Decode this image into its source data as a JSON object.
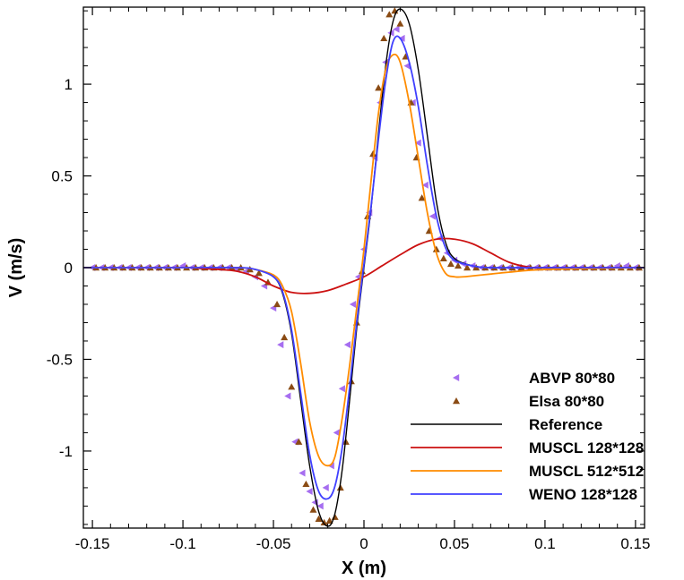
{
  "chart_data": {
    "type": "line",
    "xlabel": "X (m)",
    "ylabel": "V (m/s)",
    "xlim": [
      -0.155,
      0.155
    ],
    "ylim": [
      -1.42,
      1.42
    ],
    "x_ticks": [
      -0.15,
      -0.1,
      -0.05,
      0,
      0.05,
      0.1,
      0.15
    ],
    "x_tick_labels": [
      "-0.15",
      "-0.1",
      "-0.05",
      "0",
      "0.05",
      "0.1",
      "0.15"
    ],
    "y_ticks": [
      -1,
      -0.5,
      0,
      0.5,
      1
    ],
    "y_tick_labels": [
      "-1",
      "-0.5",
      "0",
      "0.5",
      "1"
    ],
    "grid": false,
    "legend_position": "lower-right",
    "series": [
      {
        "name": "ABVP 80*80",
        "kind": "scatter",
        "marker": "left-triangle",
        "color": "#a66ef0",
        "x": [
          -0.15,
          -0.145,
          -0.14,
          -0.135,
          -0.13,
          -0.125,
          -0.12,
          -0.115,
          -0.11,
          -0.105,
          -0.1,
          -0.095,
          -0.09,
          -0.085,
          -0.08,
          -0.075,
          -0.07,
          -0.065,
          -0.06,
          -0.055,
          -0.05,
          -0.046,
          -0.042,
          -0.038,
          -0.034,
          -0.03,
          -0.027,
          -0.024,
          -0.021,
          -0.018,
          -0.015,
          -0.012,
          -0.009,
          -0.006,
          -0.003,
          0.0,
          0.003,
          0.006,
          0.009,
          0.012,
          0.015,
          0.018,
          0.021,
          0.024,
          0.027,
          0.03,
          0.034,
          0.038,
          0.042,
          0.046,
          0.05,
          0.055,
          0.06,
          0.065,
          0.07,
          0.075,
          0.08,
          0.085,
          0.09,
          0.095,
          0.1,
          0.105,
          0.11,
          0.115,
          0.12,
          0.125,
          0.13,
          0.135,
          0.14,
          0.145,
          0.15
        ],
        "y": [
          0,
          0,
          0,
          0,
          0,
          0,
          0,
          0,
          0,
          0,
          0.01,
          0,
          0,
          0,
          0,
          0,
          -0.01,
          -0.02,
          -0.05,
          -0.1,
          -0.22,
          -0.42,
          -0.7,
          -0.95,
          -1.12,
          -1.22,
          -1.28,
          -1.3,
          -1.2,
          -1.08,
          -0.9,
          -0.66,
          -0.42,
          -0.2,
          -0.05,
          0.1,
          0.3,
          0.6,
          0.9,
          1.12,
          1.28,
          1.3,
          1.25,
          1.1,
          0.9,
          0.68,
          0.45,
          0.28,
          0.16,
          0.08,
          0.04,
          0.02,
          0.01,
          0,
          0,
          0,
          0,
          0,
          0,
          0,
          0,
          0,
          0,
          0,
          0,
          0,
          0,
          0,
          0.01,
          0.01,
          0
        ]
      },
      {
        "name": "Elsa 80*80",
        "kind": "scatter",
        "marker": "up-triangle",
        "color": "#8a4b14",
        "x": [
          -0.148,
          -0.143,
          -0.138,
          -0.133,
          -0.128,
          -0.123,
          -0.118,
          -0.113,
          -0.108,
          -0.103,
          -0.098,
          -0.093,
          -0.088,
          -0.083,
          -0.078,
          -0.073,
          -0.068,
          -0.063,
          -0.058,
          -0.053,
          -0.048,
          -0.044,
          -0.04,
          -0.036,
          -0.032,
          -0.028,
          -0.025,
          -0.022,
          -0.019,
          -0.016,
          -0.013,
          -0.01,
          -0.007,
          -0.004,
          -0.001,
          0.002,
          0.005,
          0.008,
          0.011,
          0.014,
          0.017,
          0.02,
          0.023,
          0.026,
          0.029,
          0.032,
          0.036,
          0.04,
          0.044,
          0.048,
          0.052,
          0.057,
          0.062,
          0.067,
          0.072,
          0.077,
          0.082,
          0.087,
          0.092,
          0.097,
          0.102,
          0.107,
          0.112,
          0.117,
          0.122,
          0.127,
          0.132,
          0.137,
          0.142,
          0.147,
          0.152
        ],
        "y": [
          0,
          0,
          0,
          0,
          0,
          0,
          0,
          0,
          0,
          0,
          0,
          0,
          0,
          0,
          0,
          0,
          0,
          -0.01,
          -0.03,
          -0.08,
          -0.2,
          -0.38,
          -0.65,
          -0.95,
          -1.18,
          -1.32,
          -1.37,
          -1.39,
          -1.38,
          -1.36,
          -1.2,
          -0.95,
          -0.62,
          -0.3,
          -0.02,
          0.28,
          0.62,
          0.98,
          1.25,
          1.38,
          1.4,
          1.33,
          1.15,
          0.9,
          0.6,
          0.38,
          0.2,
          0.1,
          0.05,
          0.02,
          0.01,
          0,
          0,
          0,
          0,
          0,
          0,
          0,
          0,
          0,
          0,
          0,
          0,
          0,
          0,
          0,
          0,
          0,
          0,
          0,
          0
        ]
      },
      {
        "name": "Reference",
        "kind": "line",
        "color": "#000000",
        "x": [
          -0.155,
          -0.1,
          -0.07,
          -0.06,
          -0.05,
          -0.045,
          -0.04,
          -0.035,
          -0.03,
          -0.025,
          -0.02,
          -0.016,
          -0.012,
          -0.008,
          -0.004,
          0,
          0.004,
          0.008,
          0.012,
          0.016,
          0.02,
          0.025,
          0.03,
          0.035,
          0.04,
          0.045,
          0.05,
          0.06,
          0.07,
          0.1,
          0.155
        ],
        "y": [
          0,
          0,
          0,
          -0.01,
          -0.05,
          -0.14,
          -0.36,
          -0.72,
          -1.08,
          -1.33,
          -1.41,
          -1.34,
          -1.1,
          -0.73,
          -0.33,
          0,
          0.33,
          0.73,
          1.1,
          1.34,
          1.41,
          1.33,
          1.08,
          0.72,
          0.36,
          0.14,
          0.05,
          0.01,
          0,
          0,
          0
        ]
      },
      {
        "name": "MUSCL 128*128",
        "kind": "line",
        "color": "#cc1111",
        "x": [
          -0.155,
          -0.1,
          -0.09,
          -0.08,
          -0.07,
          -0.06,
          -0.05,
          -0.04,
          -0.03,
          -0.02,
          -0.01,
          0,
          0.01,
          0.02,
          0.03,
          0.04,
          0.05,
          0.06,
          0.07,
          0.08,
          0.09,
          0.1,
          0.155
        ],
        "y": [
          0,
          0,
          -0.005,
          -0.01,
          -0.02,
          -0.05,
          -0.1,
          -0.135,
          -0.14,
          -0.125,
          -0.09,
          -0.05,
          0.01,
          0.07,
          0.125,
          0.155,
          0.155,
          0.13,
          0.08,
          0.03,
          0.005,
          0,
          0
        ]
      },
      {
        "name": "MUSCL 512*512",
        "kind": "line",
        "color": "#ff8c00",
        "x": [
          -0.155,
          -0.1,
          -0.07,
          -0.06,
          -0.05,
          -0.045,
          -0.04,
          -0.035,
          -0.03,
          -0.025,
          -0.02,
          -0.016,
          -0.012,
          -0.008,
          -0.004,
          0,
          0.004,
          0.008,
          0.012,
          0.016,
          0.02,
          0.025,
          0.03,
          0.035,
          0.04,
          0.045,
          0.05,
          0.055,
          0.06,
          0.07,
          0.08,
          0.1,
          0.155
        ],
        "y": [
          0,
          0,
          0,
          -0.01,
          -0.04,
          -0.1,
          -0.24,
          -0.52,
          -0.84,
          -1.03,
          -1.08,
          -1.03,
          -0.82,
          -0.54,
          -0.22,
          0.1,
          0.48,
          0.84,
          1.08,
          1.16,
          1.12,
          0.9,
          0.6,
          0.3,
          0.08,
          -0.03,
          -0.05,
          -0.05,
          -0.045,
          -0.035,
          -0.025,
          -0.01,
          0
        ]
      },
      {
        "name": "WENO 128*128",
        "kind": "line",
        "color": "#4040ff",
        "x": [
          -0.155,
          -0.1,
          -0.07,
          -0.06,
          -0.05,
          -0.045,
          -0.04,
          -0.035,
          -0.03,
          -0.025,
          -0.02,
          -0.016,
          -0.012,
          -0.008,
          -0.004,
          0,
          0.004,
          0.008,
          0.012,
          0.016,
          0.02,
          0.025,
          0.03,
          0.035,
          0.04,
          0.045,
          0.05,
          0.06,
          0.07,
          0.1,
          0.155
        ],
        "y": [
          0,
          0,
          0,
          -0.01,
          -0.05,
          -0.13,
          -0.34,
          -0.68,
          -1.02,
          -1.22,
          -1.26,
          -1.19,
          -0.98,
          -0.66,
          -0.3,
          0.02,
          0.34,
          0.7,
          1.02,
          1.23,
          1.25,
          1.12,
          0.88,
          0.56,
          0.28,
          0.11,
          0.04,
          0.01,
          0,
          0,
          0
        ]
      }
    ]
  }
}
